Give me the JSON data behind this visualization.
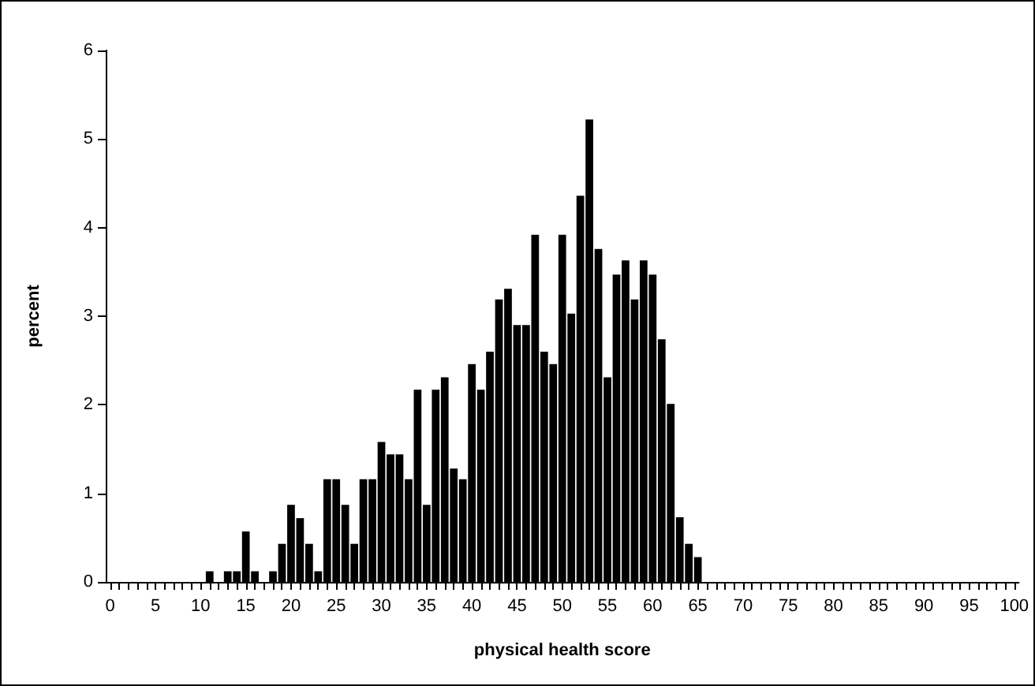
{
  "chart_data": {
    "type": "bar",
    "xlabel": "physical health score",
    "ylabel": "percent",
    "categories": [
      "0",
      null,
      null,
      null,
      null,
      "5",
      null,
      null,
      null,
      null,
      "10",
      null,
      null,
      null,
      null,
      "15",
      null,
      null,
      null,
      null,
      "20",
      null,
      null,
      null,
      null,
      "25",
      null,
      null,
      null,
      null,
      "30",
      null,
      null,
      null,
      null,
      "35",
      null,
      null,
      null,
      null,
      "40",
      null,
      null,
      null,
      null,
      "45",
      null,
      null,
      null,
      null,
      "50",
      null,
      null,
      null,
      null,
      "55",
      null,
      null,
      null,
      null,
      "60",
      null,
      null,
      null,
      null,
      "65",
      null,
      null,
      null,
      null,
      "70",
      null,
      null,
      null,
      null,
      "75",
      null,
      null,
      null,
      null,
      "80",
      null,
      null,
      null,
      null,
      "85",
      null,
      null,
      null,
      null,
      "90",
      null,
      null,
      null,
      null,
      "95",
      null,
      null,
      null,
      null,
      "100"
    ],
    "values": [
      0,
      0,
      0,
      0,
      0,
      0,
      0,
      0,
      0,
      0,
      0,
      0.12,
      0,
      0.12,
      0.12,
      0.57,
      0.12,
      0,
      0.12,
      0.43,
      0.87,
      0.72,
      0.43,
      0.12,
      1.16,
      1.16,
      0.87,
      0.43,
      1.16,
      1.16,
      1.58,
      1.44,
      1.44,
      1.16,
      2.17,
      0.87,
      2.17,
      2.31,
      1.28,
      1.16,
      2.46,
      2.17,
      2.6,
      3.19,
      3.31,
      2.9,
      2.9,
      3.92,
      2.6,
      2.46,
      3.92,
      3.03,
      4.36,
      5.22,
      3.76,
      2.31,
      3.47,
      3.63,
      3.19,
      3.63,
      3.47,
      2.74,
      2.01,
      0.73,
      0.43,
      0.28,
      0,
      0,
      0,
      0,
      0,
      0,
      0,
      0,
      0,
      0,
      0,
      0,
      0,
      0,
      0,
      0,
      0,
      0,
      0,
      0,
      0,
      0,
      0,
      0,
      0,
      0,
      0,
      0,
      0,
      0,
      0,
      0,
      0,
      0,
      0
    ],
    "color": "#000000",
    "ylim": [
      0,
      6
    ],
    "yticks": [
      0,
      1,
      2,
      3,
      4,
      5,
      6
    ],
    "grid": false
  }
}
